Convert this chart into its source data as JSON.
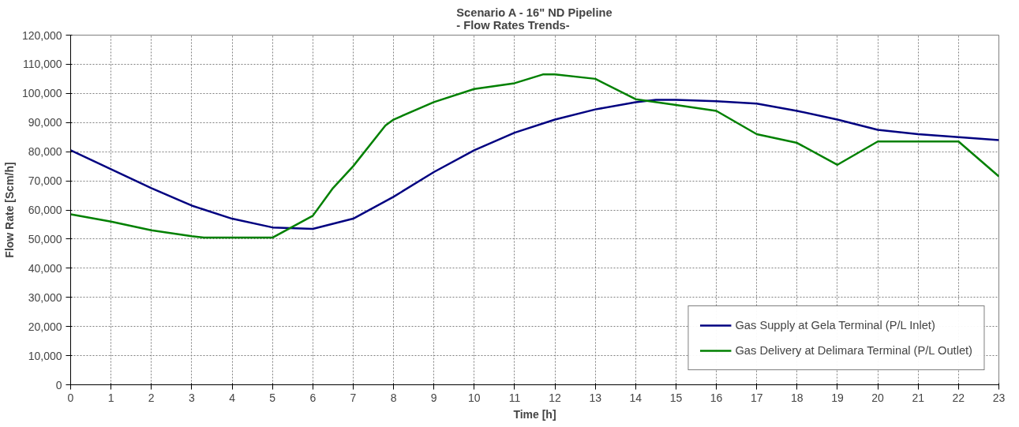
{
  "chart_data": {
    "type": "line",
    "title": "Scenario A - 16\" ND Pipeline\n- Flow Rates Trends-",
    "xlabel": "Time [h]",
    "ylabel": "Flow Rate [Scm/h]",
    "xlim": [
      0,
      23
    ],
    "xticks": [
      0,
      1,
      2,
      3,
      4,
      5,
      6,
      7,
      8,
      9,
      10,
      11,
      12,
      13,
      14,
      15,
      16,
      17,
      18,
      19,
      20,
      21,
      22,
      23
    ],
    "ylim": [
      0,
      120000
    ],
    "yticks": [
      {
        "value": 0,
        "label": "0"
      },
      {
        "value": 10000,
        "label": "10,000"
      },
      {
        "value": 20000,
        "label": "20,000"
      },
      {
        "value": 30000,
        "label": "30,000"
      },
      {
        "value": 40000,
        "label": "40,000"
      },
      {
        "value": 50000,
        "label": "50,000"
      },
      {
        "value": 60000,
        "label": "60,000"
      },
      {
        "value": 70000,
        "label": "70,000"
      },
      {
        "value": 80000,
        "label": "80,000"
      },
      {
        "value": 90000,
        "label": "90,000"
      },
      {
        "value": 100000,
        "label": "100,000"
      },
      {
        "value": 110000,
        "label": "110,000"
      },
      {
        "value": 120000,
        "label": "120,000"
      }
    ],
    "grid": true,
    "legend": "bottom right",
    "line_style": "solid",
    "series": [
      {
        "name": "Gas Supply at Gela Terminal (P/L Inlet)",
        "color": "#000080",
        "x": [
          0,
          1,
          2,
          3,
          4,
          5,
          6,
          7,
          8,
          9,
          10,
          11,
          12,
          13,
          14,
          14.5,
          15,
          16,
          17,
          18,
          19,
          20,
          21,
          22,
          23
        ],
        "values": [
          80500,
          74000,
          67500,
          61500,
          57000,
          54000,
          53500,
          57000,
          64500,
          73000,
          80500,
          86500,
          91000,
          94500,
          97000,
          97800,
          97800,
          97300,
          96500,
          94000,
          91000,
          87500,
          86000,
          85000,
          84000
        ]
      },
      {
        "name": "Gas Delivery at Delimara Terminal (P/L Outlet)",
        "color": "#008000",
        "x": [
          0,
          1,
          2,
          3,
          3.3,
          4,
          5,
          6,
          6.5,
          7,
          7.8,
          8,
          9,
          10,
          11,
          11.7,
          12,
          13,
          14,
          15,
          16,
          17,
          18,
          19,
          20,
          22,
          23
        ],
        "values": [
          58500,
          56000,
          53000,
          51000,
          50500,
          50500,
          50500,
          58000,
          67500,
          75000,
          89000,
          91000,
          97000,
          101500,
          103500,
          106500,
          106500,
          105000,
          98000,
          96000,
          94000,
          86000,
          83000,
          75500,
          83500,
          83500,
          71500
        ]
      }
    ]
  }
}
